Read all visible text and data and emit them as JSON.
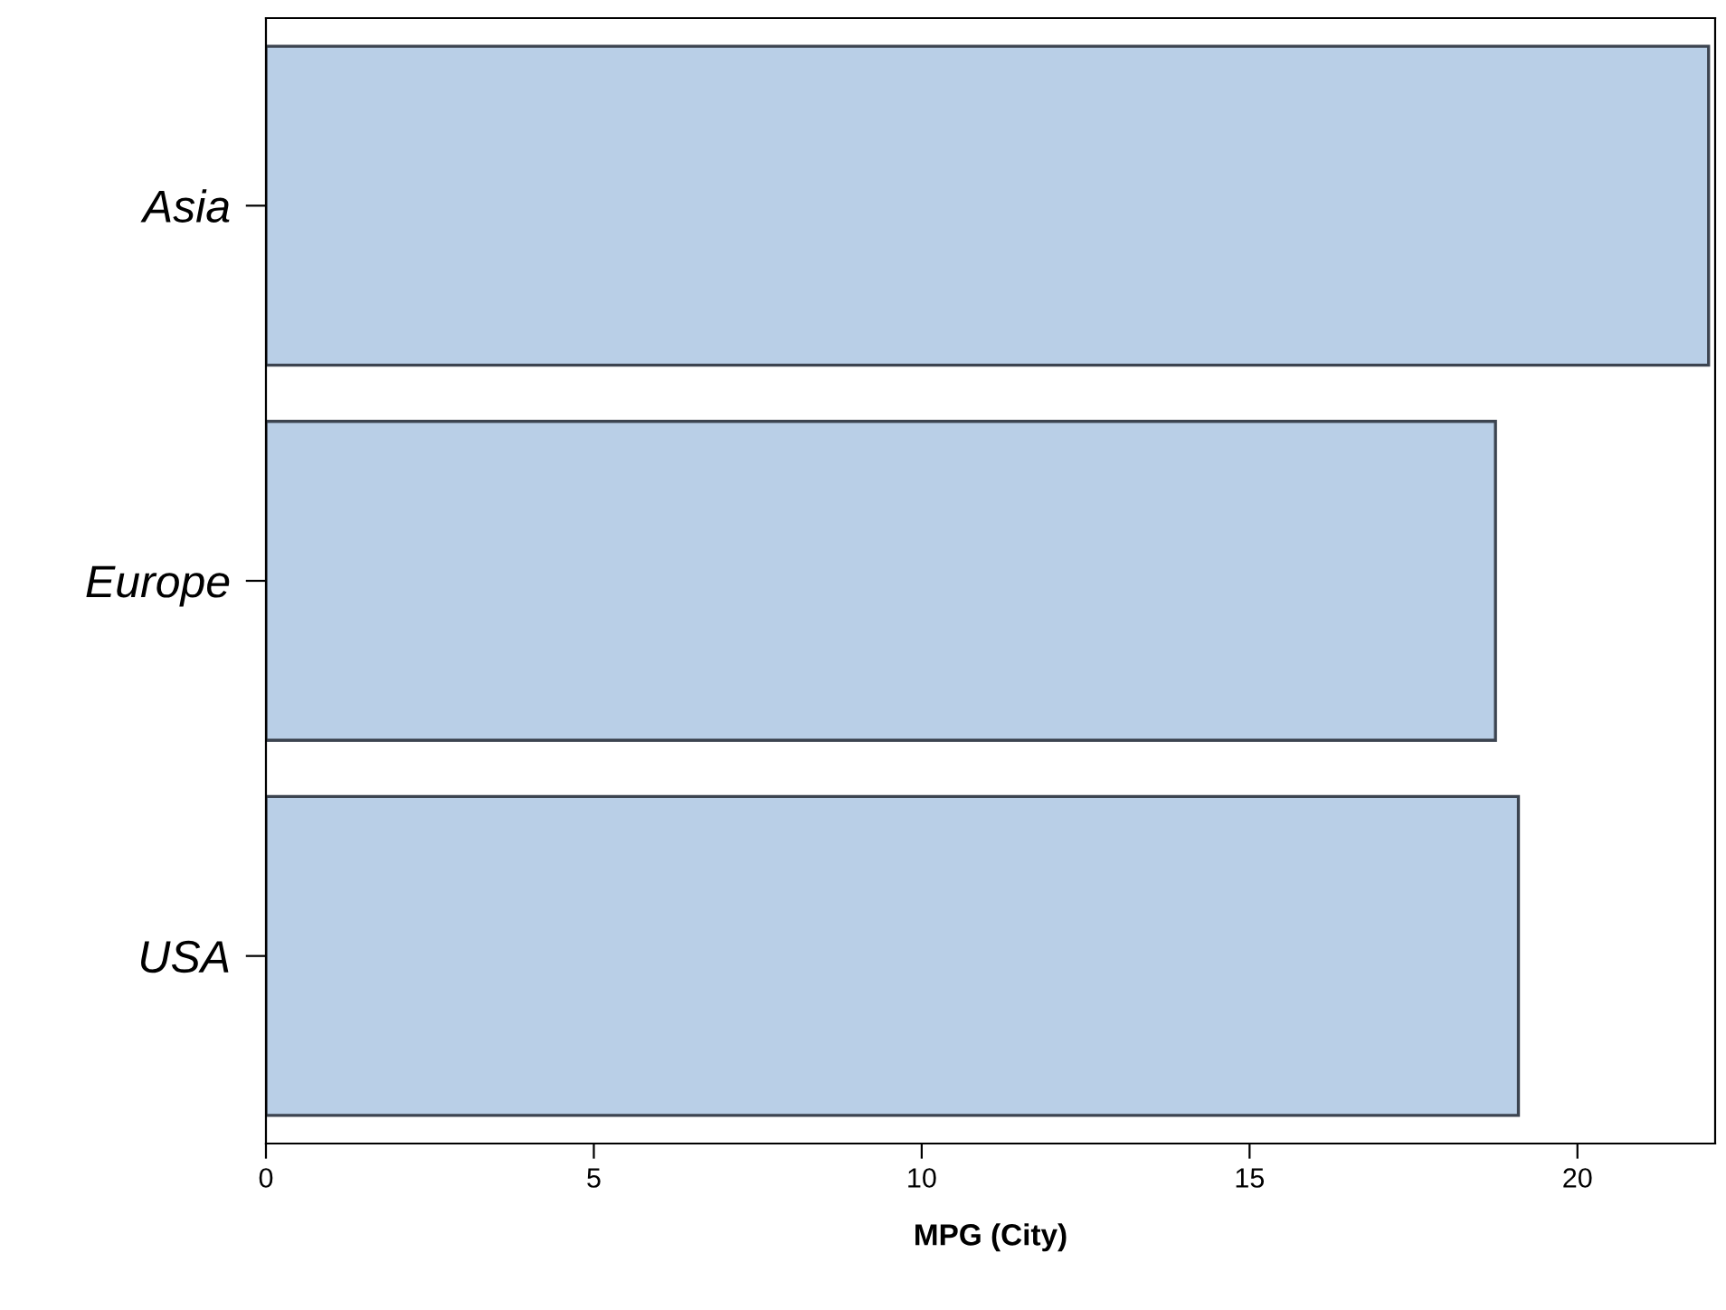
{
  "chart_data": {
    "type": "bar",
    "orientation": "horizontal",
    "categories": [
      "Asia",
      "Europe",
      "USA"
    ],
    "values": [
      22.0,
      18.75,
      19.1
    ],
    "color": "#b9cfe7",
    "xlabel": "MPG (City)",
    "xlim": [
      0,
      22.1
    ],
    "xticks": [
      0,
      5,
      10,
      15,
      20
    ],
    "grid": false,
    "legend": false
  }
}
